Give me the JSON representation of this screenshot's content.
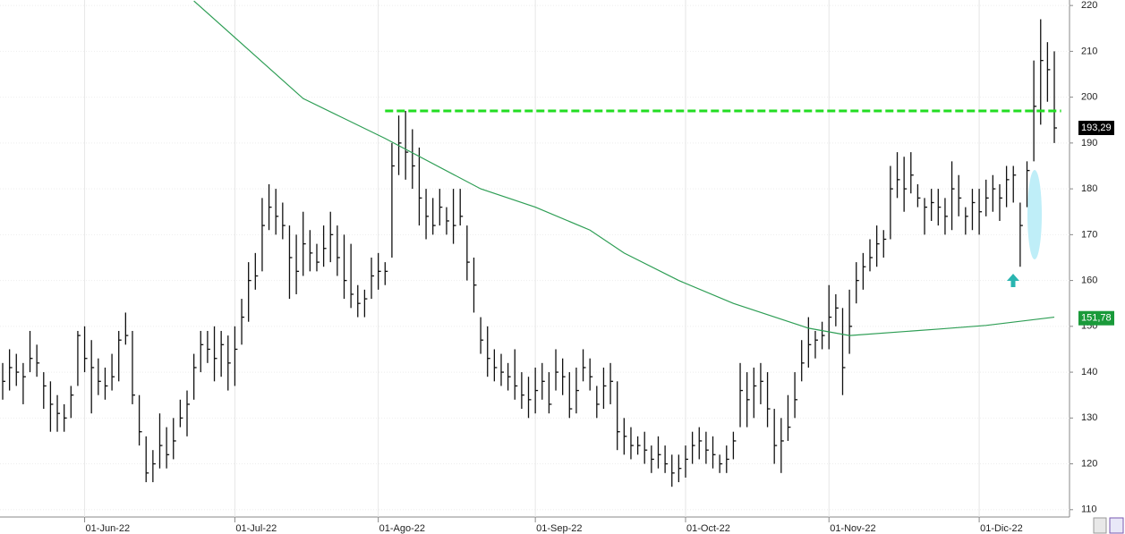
{
  "chart_data": {
    "type": "ohlc",
    "categories": [
      null,
      null,
      null,
      null,
      null,
      null,
      null,
      null,
      null,
      null,
      null,
      null,
      "01-Jun-22",
      null,
      null,
      null,
      null,
      null,
      null,
      null,
      null,
      null,
      null,
      null,
      null,
      null,
      null,
      null,
      null,
      null,
      null,
      null,
      null,
      null,
      "01-Jul-22",
      null,
      null,
      null,
      null,
      null,
      null,
      null,
      null,
      null,
      null,
      null,
      null,
      null,
      null,
      null,
      null,
      null,
      null,
      null,
      null,
      "01-Ago-22",
      null,
      null,
      null,
      null,
      null,
      null,
      null,
      null,
      null,
      null,
      null,
      null,
      null,
      null,
      null,
      null,
      null,
      null,
      null,
      null,
      null,
      null,
      "01-Sep-22",
      null,
      null,
      null,
      null,
      null,
      null,
      null,
      null,
      null,
      null,
      null,
      null,
      null,
      null,
      null,
      null,
      null,
      null,
      null,
      null,
      null,
      "01-Oct-22",
      null,
      null,
      null,
      null,
      null,
      null,
      null,
      null,
      null,
      null,
      null,
      null,
      null,
      null,
      null,
      null,
      null,
      null,
      null,
      null,
      "01-Nov-22",
      null,
      null,
      null,
      null,
      null,
      null,
      null,
      null,
      null,
      null,
      null,
      null,
      null,
      null,
      null,
      null,
      null,
      null,
      null,
      null,
      null,
      "01-Dic-22",
      null,
      null,
      null,
      null,
      null,
      null,
      null,
      null,
      null,
      null,
      null
    ],
    "high": [
      142,
      145,
      144,
      142,
      149,
      146,
      140,
      138,
      135,
      133,
      137,
      149,
      150,
      147,
      143,
      141,
      144,
      149,
      153,
      149,
      135,
      126,
      123,
      131,
      128,
      130,
      134,
      136,
      144,
      149,
      149,
      150,
      149,
      148,
      150,
      156,
      164,
      166,
      178,
      181,
      180,
      177,
      172,
      170,
      175,
      171,
      168,
      172,
      175,
      172,
      170,
      168,
      159,
      158,
      165,
      166,
      164,
      190,
      196,
      197,
      193,
      189,
      180,
      178,
      180,
      176,
      180,
      180,
      172,
      165,
      152,
      150,
      145,
      144,
      142,
      145,
      140,
      139,
      141,
      142,
      140,
      145,
      143,
      140,
      141,
      145,
      143,
      137,
      141,
      142,
      138,
      130,
      128,
      126,
      127,
      124,
      126,
      124,
      122,
      122,
      124,
      127,
      128,
      127,
      126,
      122,
      124,
      127,
      142,
      140,
      141,
      142,
      140,
      132,
      130,
      135,
      140,
      147,
      152,
      149,
      151,
      159,
      157,
      154,
      158,
      164,
      166,
      169,
      172,
      171,
      185,
      188,
      187,
      188,
      181,
      178,
      180,
      180,
      178,
      186,
      183,
      176,
      180,
      180,
      182,
      183,
      181,
      185,
      185,
      177,
      186,
      208,
      217,
      212,
      210
    ],
    "low": [
      134,
      136,
      137,
      133,
      140,
      139,
      132,
      127,
      127,
      127,
      130,
      137,
      140,
      131,
      135,
      134,
      136,
      138,
      146,
      133,
      124,
      116,
      116,
      119,
      119,
      121,
      128,
      126,
      134,
      140,
      142,
      138,
      139,
      136,
      137,
      146,
      151,
      158,
      162,
      171,
      170,
      169,
      156,
      157,
      161,
      162,
      162,
      163,
      164,
      161,
      156,
      154,
      152,
      152,
      156,
      158,
      159,
      165,
      183,
      182,
      180,
      172,
      169,
      170,
      172,
      170,
      168,
      172,
      160,
      153,
      144,
      139,
      138,
      137,
      136,
      134,
      132,
      130,
      131,
      134,
      131,
      136,
      135,
      130,
      131,
      138,
      136,
      130,
      132,
      133,
      123,
      122,
      121,
      122,
      120,
      118,
      119,
      118,
      115,
      116,
      117,
      120,
      121,
      120,
      119,
      118,
      118,
      121,
      128,
      128,
      130,
      133,
      128,
      120,
      118,
      125,
      130,
      138,
      141,
      143,
      145,
      145,
      150,
      135,
      144,
      155,
      158,
      162,
      163,
      165,
      169,
      178,
      175,
      179,
      176,
      170,
      173,
      172,
      170,
      171,
      174,
      170,
      171,
      170,
      174,
      175,
      173,
      176,
      177,
      163,
      176,
      186,
      194,
      199,
      190
    ],
    "close": [
      138,
      141,
      140,
      139,
      143,
      142,
      137,
      133,
      131,
      130,
      135,
      148,
      143,
      141,
      138,
      137,
      139,
      147,
      148,
      135,
      127,
      118,
      120,
      124,
      122,
      125,
      130,
      133,
      141,
      146,
      145,
      143,
      146,
      142,
      145,
      152,
      160,
      161,
      172,
      176,
      174,
      172,
      165,
      162,
      168,
      166,
      164,
      167,
      170,
      165,
      160,
      157,
      155,
      156,
      161,
      162,
      162,
      185,
      190,
      188,
      185,
      178,
      174,
      172,
      176,
      173,
      172,
      174,
      164,
      159,
      147,
      143,
      141,
      140,
      139,
      137,
      135,
      134,
      136,
      138,
      133,
      140,
      139,
      132,
      136,
      141,
      139,
      133,
      137,
      138,
      127,
      126,
      124,
      124,
      123,
      121,
      122,
      120,
      118,
      119,
      121,
      124,
      125,
      123,
      122,
      120,
      121,
      125,
      136,
      134,
      137,
      138,
      132,
      124,
      125,
      128,
      134,
      142,
      146,
      147,
      148,
      152,
      154,
      141,
      150,
      160,
      163,
      165,
      168,
      169,
      180,
      182,
      180,
      183,
      178,
      176,
      177,
      176,
      174,
      180,
      178,
      174,
      177,
      175,
      178,
      180,
      178,
      182,
      183,
      172,
      184,
      198,
      208,
      206,
      193.29
    ],
    "color": "#111111",
    "ma": {
      "color": "#2e9e55",
      "x": [
        28,
        44,
        56,
        70,
        78,
        86,
        91,
        99,
        107,
        118,
        124,
        137,
        144,
        154
      ],
      "values": [
        221,
        199.7,
        191,
        180,
        176,
        171,
        166,
        160,
        155,
        149.6,
        148,
        149.4,
        150.2,
        152
      ]
    },
    "level": {
      "color": "#22dd22",
      "value": 197,
      "x": [
        56,
        155
      ]
    },
    "last_price": {
      "value": 193.29,
      "label": "193,29"
    },
    "ma_last": {
      "value": 151.78,
      "label": "151,78"
    },
    "ylim": [
      108.4,
      221.2
    ],
    "yticks": [
      110,
      120,
      130,
      140,
      150,
      160,
      170,
      180,
      190,
      200,
      210,
      220
    ],
    "grid": true
  }
}
